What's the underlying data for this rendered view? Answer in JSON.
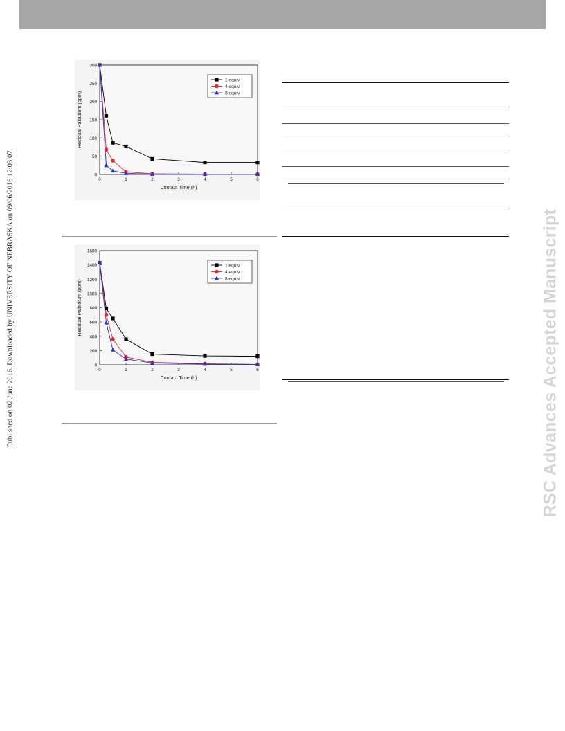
{
  "side_note": "Published on 02 June 2016. Downloaded by UNIVERSITY OF NEBRASKA on 09/06/2016 12:03:07.",
  "watermark": "RSC Advances Accepted Manuscript",
  "chart_data": [
    {
      "type": "line",
      "title": "",
      "xlabel": "Contact Time (h)",
      "ylabel": "Residual Palladium (ppm)",
      "xlim": [
        0,
        6
      ],
      "ylim": [
        0,
        300
      ],
      "xticks": [
        0,
        1,
        2,
        3,
        4,
        5,
        6
      ],
      "yticks": [
        0,
        50,
        100,
        150,
        200,
        250,
        300
      ],
      "grid": false,
      "legend_position": "top-right",
      "x": [
        0,
        0.25,
        0.5,
        1,
        2,
        4,
        6
      ],
      "series": [
        {
          "name": "1 equiv",
          "color": "#000000",
          "marker": "square",
          "values": [
            300,
            161,
            87,
            77,
            43,
            33,
            33
          ]
        },
        {
          "name": "4 equiv",
          "color": "#e8262a",
          "marker": "circle",
          "values": [
            300,
            68,
            38,
            7,
            2,
            1,
            1
          ]
        },
        {
          "name": "8 equiv",
          "color": "#2233cc",
          "marker": "triangle",
          "values": [
            300,
            25,
            10,
            3,
            1,
            1,
            1
          ]
        }
      ]
    },
    {
      "type": "line",
      "title": "",
      "xlabel": "Contact Time (h)",
      "ylabel": "Residual Palladium (ppm)",
      "xlim": [
        0,
        6
      ],
      "ylim": [
        0,
        1600
      ],
      "xticks": [
        0,
        1,
        2,
        3,
        4,
        5,
        6
      ],
      "yticks": [
        0,
        200,
        400,
        600,
        800,
        1000,
        1200,
        1400,
        1600
      ],
      "grid": false,
      "legend_position": "top-right",
      "x": [
        0,
        0.25,
        0.5,
        1,
        2,
        4,
        6
      ],
      "series": [
        {
          "name": "1 equiv",
          "color": "#000000",
          "marker": "square",
          "values": [
            1430,
            790,
            650,
            360,
            150,
            125,
            120
          ]
        },
        {
          "name": "4 equiv",
          "color": "#e8262a",
          "marker": "circle",
          "values": [
            1430,
            700,
            360,
            110,
            35,
            15,
            5
          ]
        },
        {
          "name": "8 equiv",
          "color": "#2233cc",
          "marker": "triangle",
          "values": [
            1430,
            590,
            210,
            80,
            25,
            10,
            5
          ]
        }
      ]
    }
  ]
}
